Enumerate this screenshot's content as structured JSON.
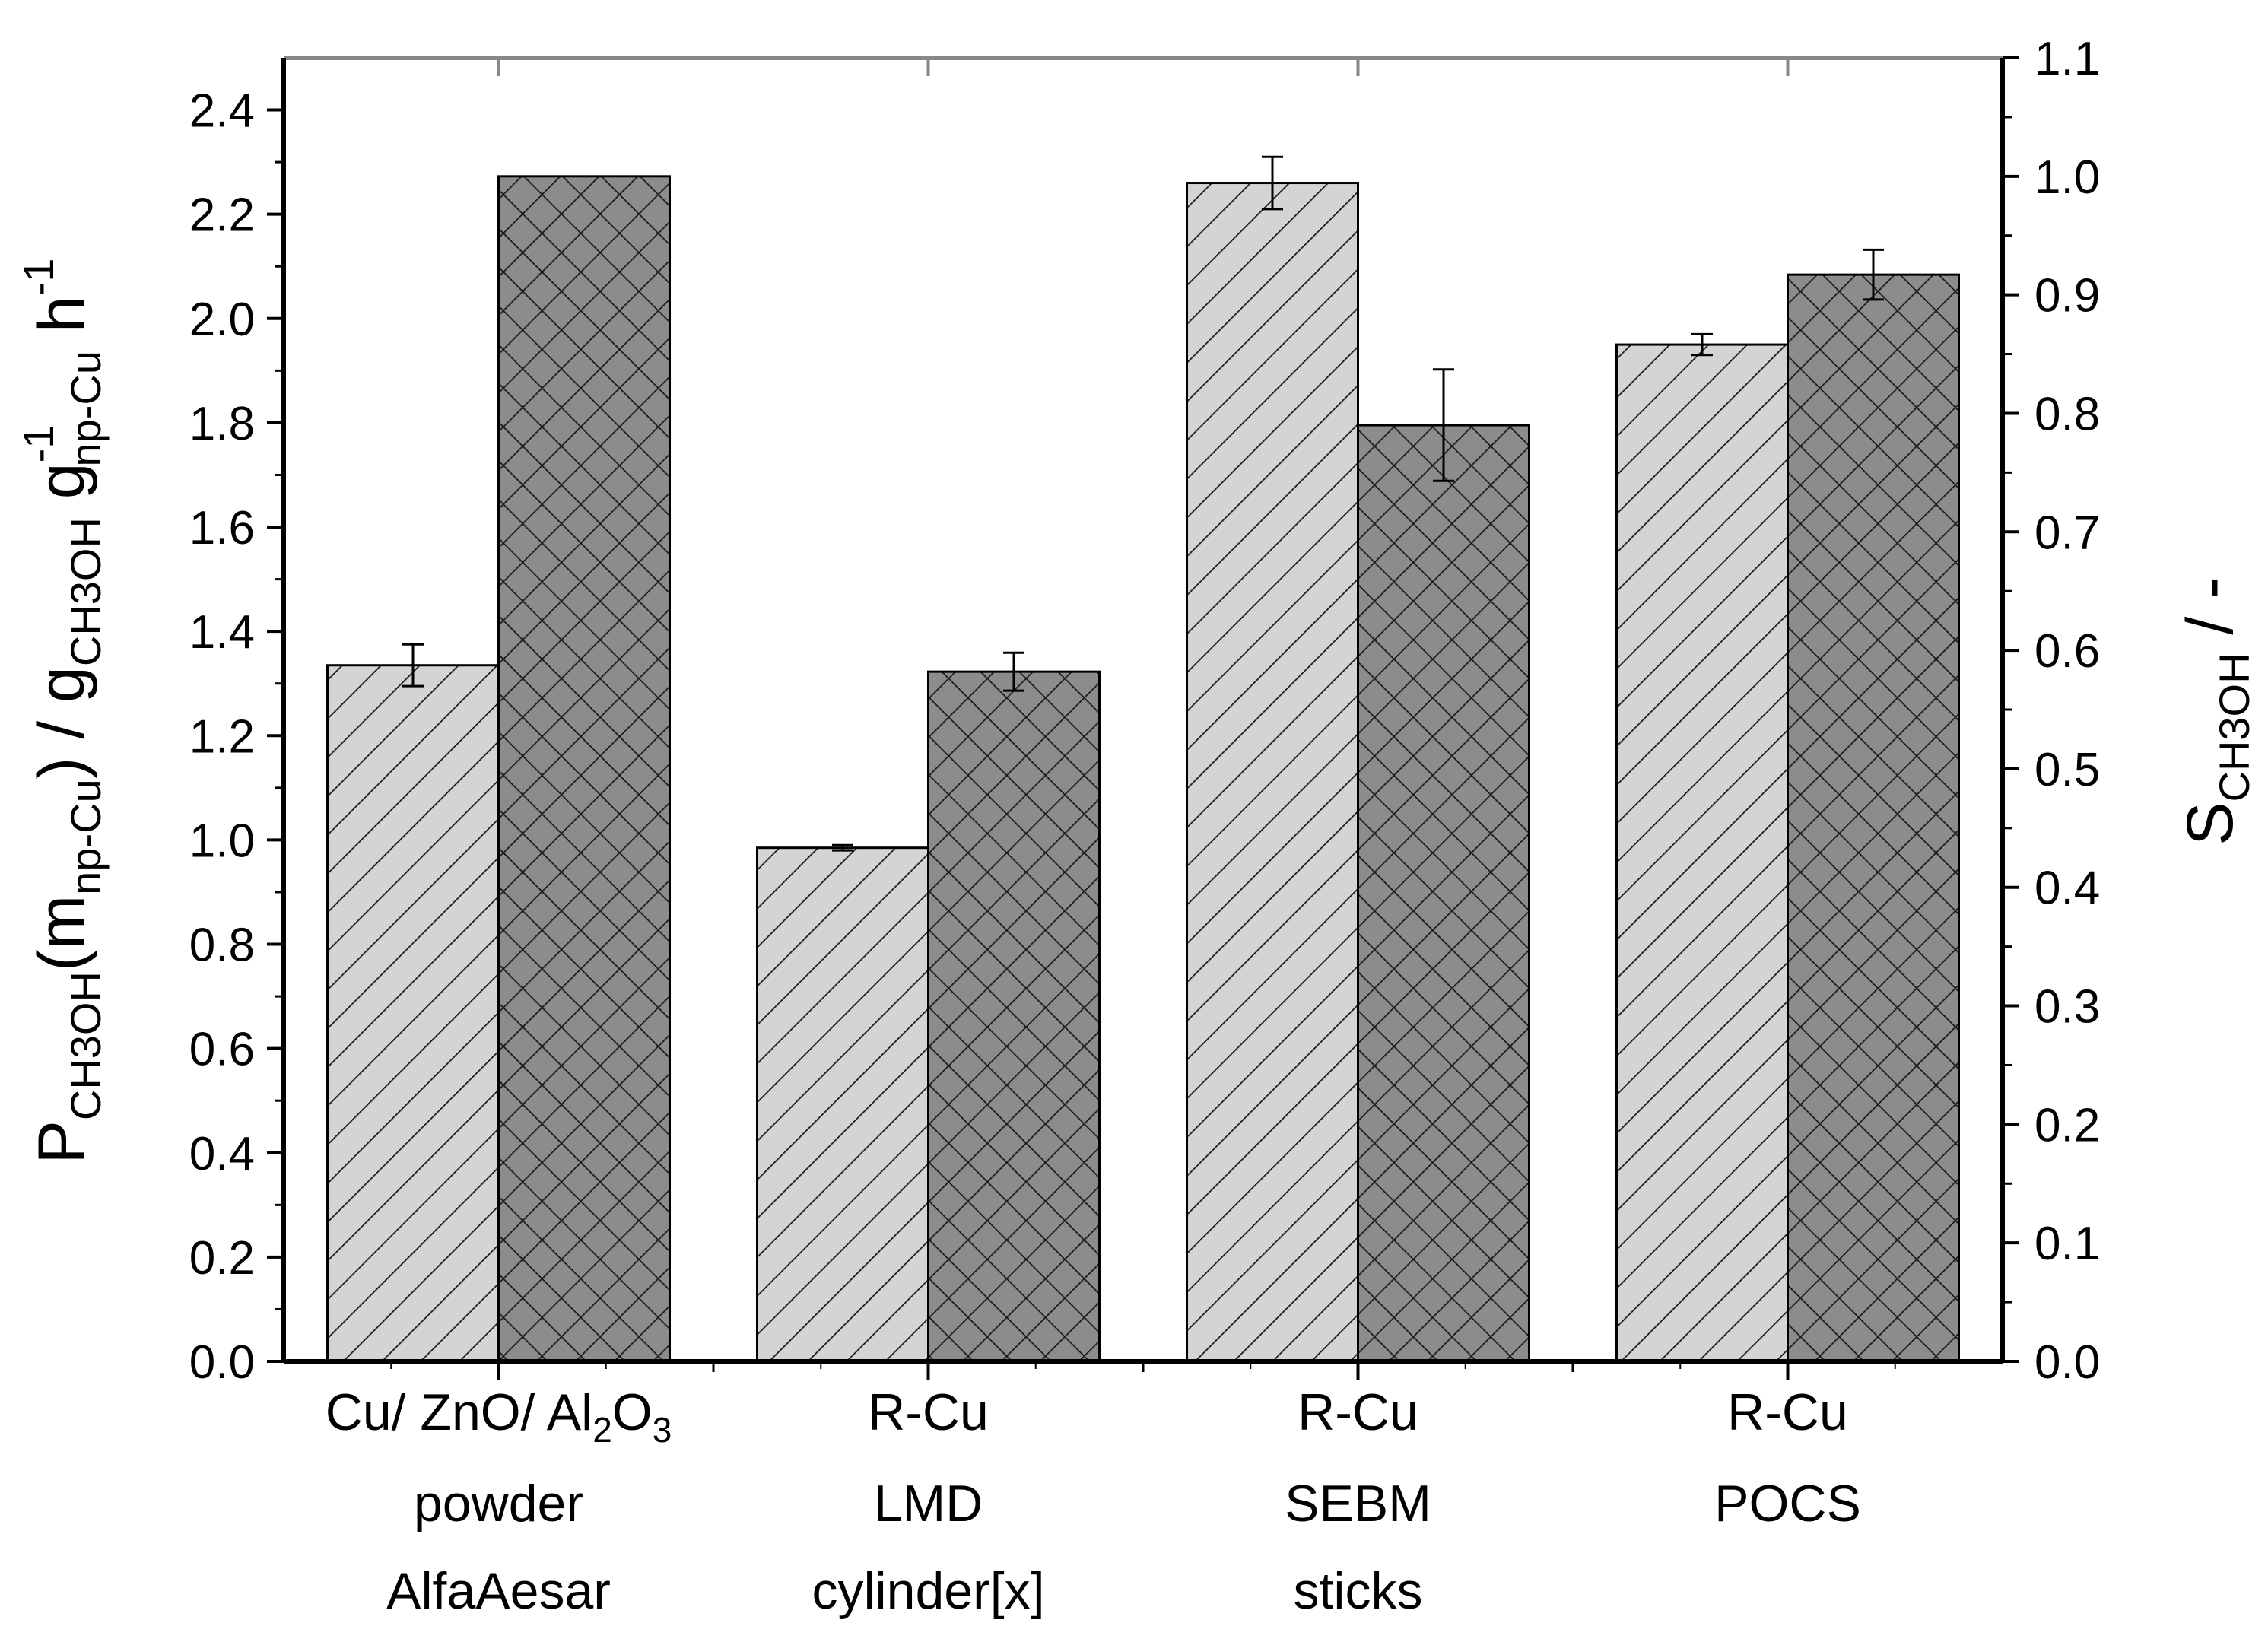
{
  "chart_data": {
    "type": "bar",
    "categories": [
      {
        "lines": [
          "Cu/ ZnO/ Al2O3",
          "powder",
          "AlfaAesar"
        ]
      },
      {
        "lines": [
          "R-Cu",
          "LMD",
          "cylinder[x]"
        ]
      },
      {
        "lines": [
          "R-Cu",
          "SEBM",
          "sticks"
        ]
      },
      {
        "lines": [
          "R-Cu",
          "POCS"
        ]
      }
    ],
    "category_label_first": {
      "base": "Cu/ ZnO/ Al",
      "sub1": "2",
      "mid": "O",
      "sub2": "3"
    },
    "series": [
      {
        "name": "P_CH3OH (left axis)",
        "axis": "left",
        "pattern": "diagonal",
        "color": "#d4d4d4",
        "values": [
          1.335,
          0.985,
          2.26,
          1.95
        ],
        "errors": [
          0.04,
          0.005,
          0.05,
          0.02
        ]
      },
      {
        "name": "S_CH3OH (right axis)",
        "axis": "right",
        "pattern": "crosshatch",
        "color": "#8c8c8c",
        "values": [
          1.0,
          0.582,
          0.79,
          0.917
        ],
        "errors": [
          null,
          0.016,
          0.047,
          0.021
        ]
      }
    ],
    "y_left": {
      "min": 0.0,
      "max": 2.5,
      "ticks": [
        "0.0",
        "0.2",
        "0.4",
        "0.6",
        "0.8",
        "1.0",
        "1.2",
        "1.4",
        "1.6",
        "1.8",
        "2.0",
        "2.2",
        "2.4"
      ]
    },
    "y_right": {
      "min": 0.0,
      "max": 1.1,
      "ticks": [
        "0.0",
        "0.1",
        "0.2",
        "0.3",
        "0.4",
        "0.5",
        "0.6",
        "0.7",
        "0.8",
        "0.9",
        "1.0",
        "1.1"
      ]
    },
    "ylabel_left": {
      "p1": "P",
      "s1": "CH3OH",
      "p2": "(m",
      "s2": "np-Cu",
      "p3": ")  /  g",
      "s3": "CH3OH",
      "p4": " g",
      "sup1": "-1",
      "s4": "np-Cu",
      "p5": " h",
      "sup2": "-1"
    },
    "ylabel_right": {
      "p1": "S",
      "s1": "CH3OH",
      "p2": "  /  -"
    }
  }
}
